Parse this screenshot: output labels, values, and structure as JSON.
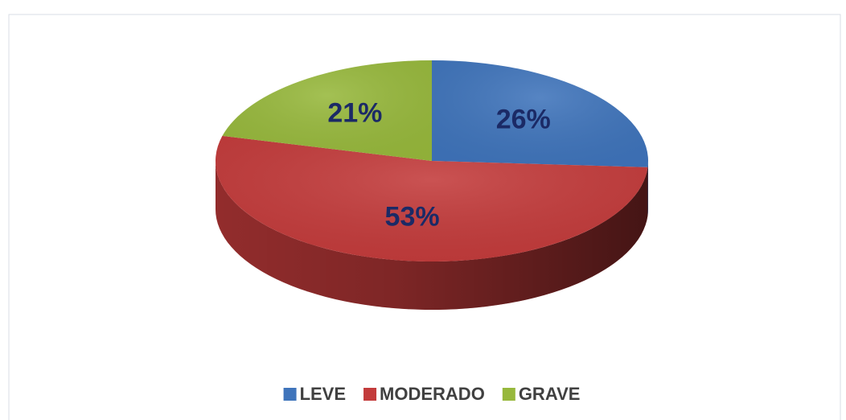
{
  "chart_data": {
    "type": "pie",
    "categories": [
      "LEVE",
      "MODERADO",
      "GRAVE"
    ],
    "values": [
      26,
      53,
      21
    ],
    "value_labels": [
      "26%",
      "53%",
      "21%"
    ],
    "colors": [
      "#3f74bb",
      "#c33b3b",
      "#97b83c"
    ],
    "legend": "bottom"
  }
}
